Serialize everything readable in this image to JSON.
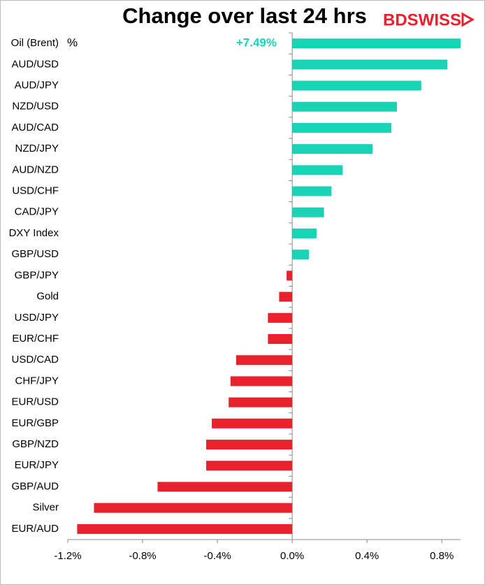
{
  "chart_data": {
    "type": "barh",
    "title": "Change over last 24 hrs",
    "logo": "BDSWISS",
    "unit_label": "%",
    "categories": [
      "Oil (Brent)",
      "AUD/USD",
      "AUD/JPY",
      "NZD/USD",
      "AUD/CAD",
      "NZD/JPY",
      "AUD/NZD",
      "USD/CHF",
      "CAD/JPY",
      "DXY Index",
      "GBP/USD",
      "GBP/JPY",
      "Gold",
      "USD/JPY",
      "EUR/CHF",
      "USD/CAD",
      "CHF/JPY",
      "EUR/USD",
      "EUR/GBP",
      "GBP/NZD",
      "EUR/JPY",
      "GBP/AUD",
      "Silver",
      "EUR/AUD"
    ],
    "values": [
      7.49,
      0.83,
      0.69,
      0.56,
      0.53,
      0.43,
      0.27,
      0.21,
      0.17,
      0.13,
      0.09,
      -0.03,
      -0.07,
      -0.13,
      -0.13,
      -0.3,
      -0.33,
      -0.34,
      -0.43,
      -0.46,
      -0.46,
      -0.72,
      -1.06,
      -1.15
    ],
    "value_labels": [
      "+7.49%",
      null,
      null,
      null,
      null,
      null,
      null,
      null,
      null,
      null,
      null,
      null,
      null,
      null,
      null,
      null,
      null,
      null,
      null,
      null,
      null,
      null,
      null,
      null
    ],
    "positive_color": "#19d3b5",
    "negative_color": "#e8212d",
    "xlim": [
      -1.2,
      0.9
    ],
    "xticks": [
      {
        "value": -1.2,
        "label": "-1.2%"
      },
      {
        "value": -0.8,
        "label": "-0.8%"
      },
      {
        "value": -0.4,
        "label": "-0.4%"
      },
      {
        "value": 0,
        "label": "0.0%"
      },
      {
        "value": 0.4,
        "label": "0.4%"
      },
      {
        "value": 0.8,
        "label": "0.8%"
      }
    ],
    "grid": false
  }
}
